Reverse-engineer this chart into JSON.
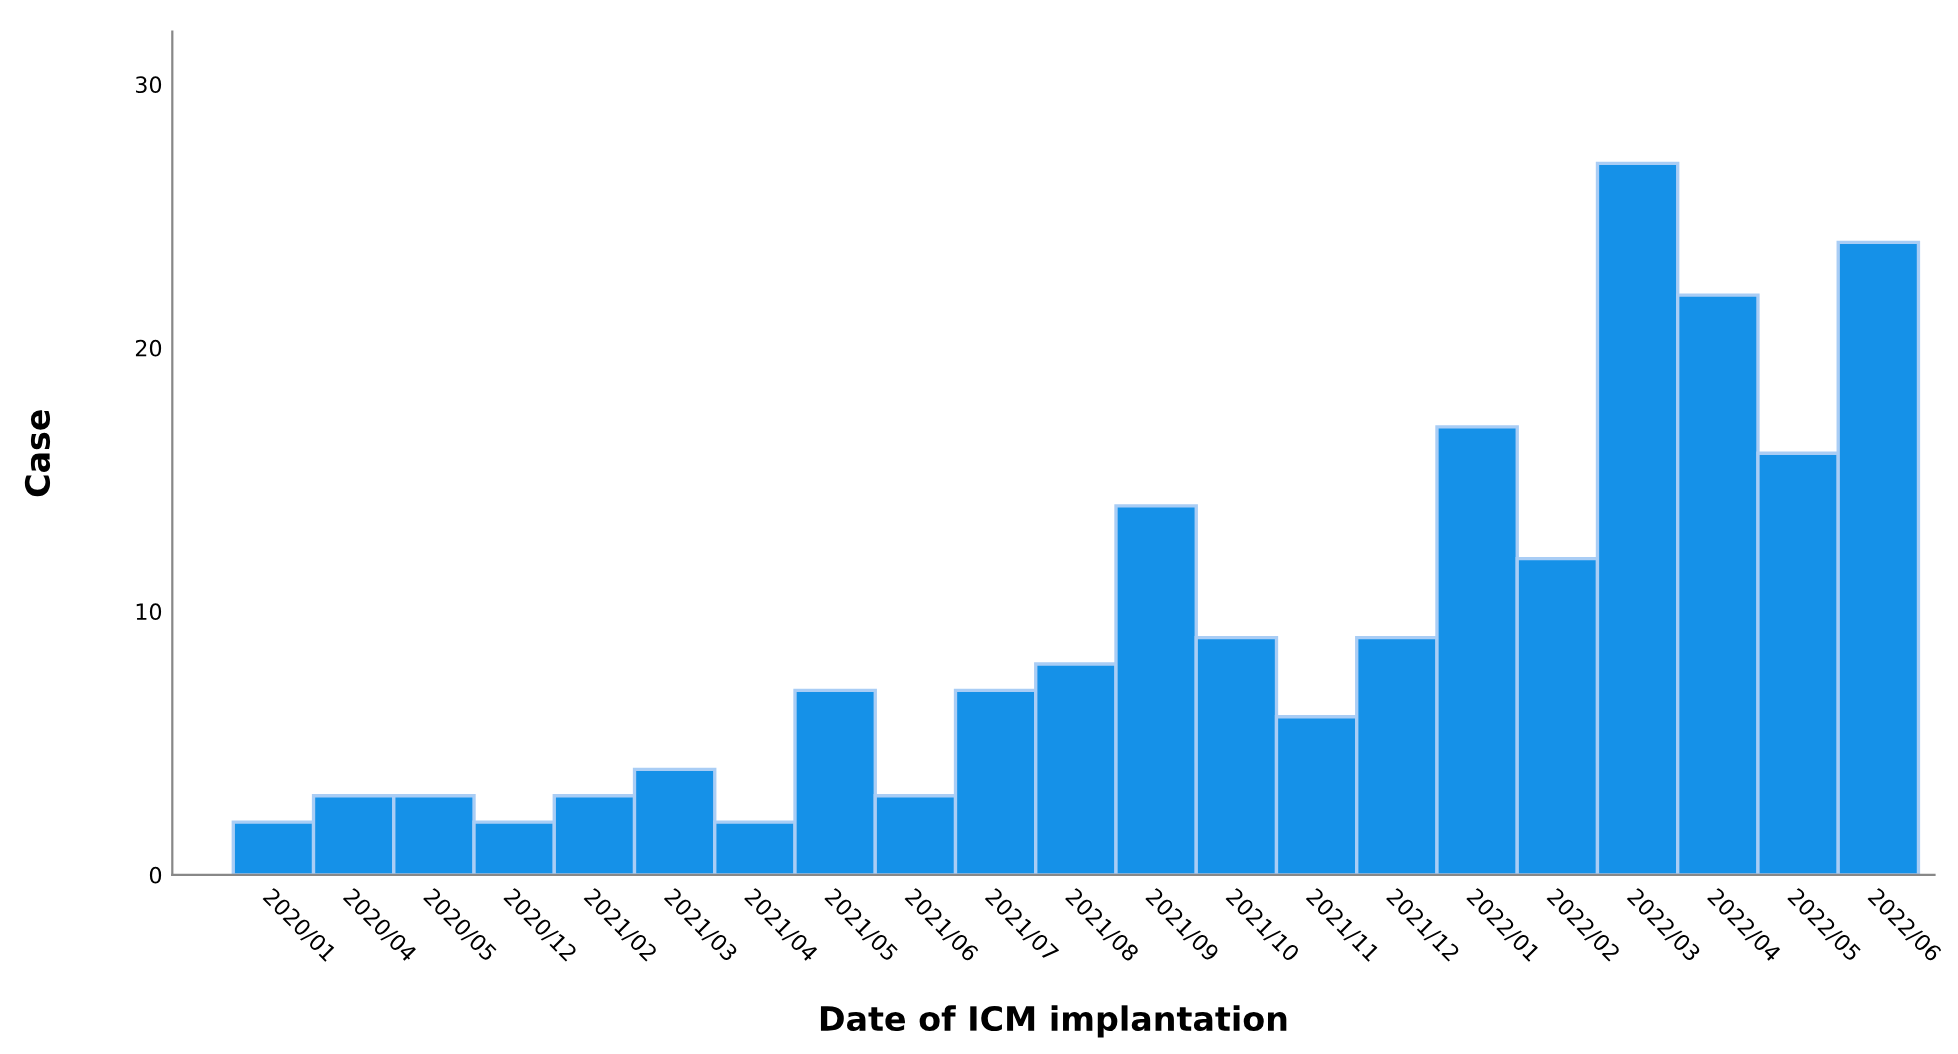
{
  "chart_data": {
    "type": "bar",
    "xlabel": "Date of ICM implantation",
    "ylabel": "Case",
    "categories": [
      "2020/01",
      "2020/04",
      "2020/05",
      "2020/12",
      "2021/02",
      "2021/03",
      "2021/04",
      "2021/05",
      "2021/06",
      "2021/07",
      "2021/08",
      "2021/09",
      "2021/10",
      "2021/11",
      "2021/12",
      "2022/01",
      "2022/02",
      "2022/03",
      "2022/04",
      "2022/05",
      "2022/06"
    ],
    "values": [
      2,
      3,
      3,
      2,
      3,
      4,
      2,
      7,
      3,
      7,
      8,
      14,
      9,
      6,
      9,
      17,
      12,
      27,
      22,
      16,
      24
    ],
    "color": "#1591e8",
    "ylim": [
      0,
      32
    ],
    "yticks": [
      0,
      10,
      20,
      30
    ],
    "grid": false
  }
}
